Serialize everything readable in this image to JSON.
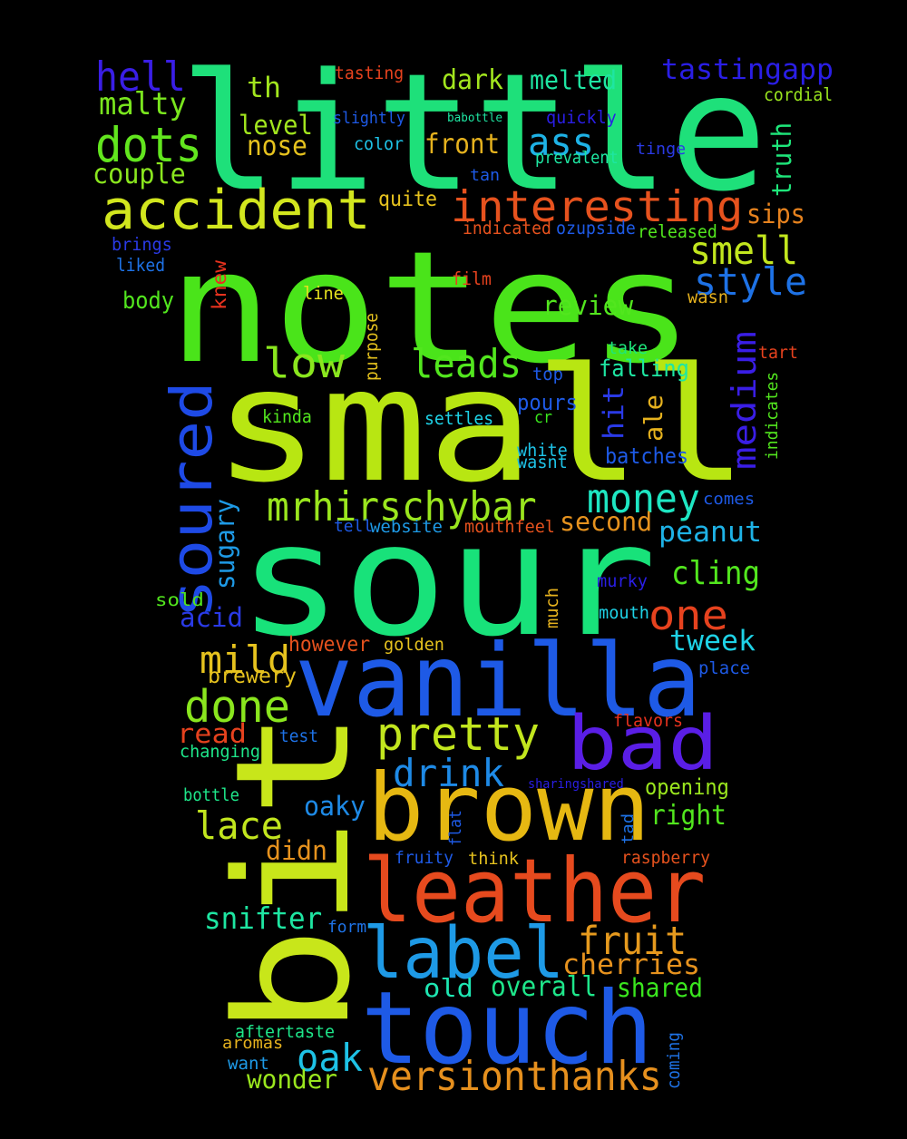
{
  "words": [
    {
      "text": "little",
      "color": "#1ee07a",
      "vertical": false
    },
    {
      "text": "notes",
      "color": "#4ae41a",
      "vertical": false
    },
    {
      "text": "small",
      "color": "#b8e612",
      "vertical": false
    },
    {
      "text": "sour",
      "color": "#18e27a",
      "vertical": false
    },
    {
      "text": "bit",
      "color": "#c8e61a",
      "vertical": true
    },
    {
      "text": "vanilla",
      "color": "#1e5ae6",
      "vertical": false
    },
    {
      "text": "brown",
      "color": "#e6b812",
      "vertical": false
    },
    {
      "text": "leather",
      "color": "#e64a1e",
      "vertical": false
    },
    {
      "text": "touch",
      "color": "#1e5ae6",
      "vertical": false
    },
    {
      "text": "bad",
      "color": "#5a1ee6",
      "vertical": false
    },
    {
      "text": "label",
      "color": "#1e9ae6",
      "vertical": false
    },
    {
      "text": "accident",
      "color": "#d2e61e",
      "vertical": false
    },
    {
      "text": "soured",
      "color": "#1e4ae6",
      "vertical": true
    },
    {
      "text": "interesting",
      "color": "#e6521e",
      "vertical": false
    },
    {
      "text": "mrhirschybar",
      "color": "#9ae61e",
      "vertical": false
    },
    {
      "text": "pretty",
      "color": "#c2e61e",
      "vertical": false
    },
    {
      "text": "versionthanks",
      "color": "#e6901e",
      "vertical": false
    },
    {
      "text": "dots",
      "color": "#62e61e",
      "vertical": false
    },
    {
      "text": "hell",
      "color": "#3a1ee6",
      "vertical": false
    },
    {
      "text": "low",
      "color": "#8ae61e",
      "vertical": false
    },
    {
      "text": "leads",
      "color": "#52e61e",
      "vertical": false
    },
    {
      "text": "done",
      "color": "#8ae61e",
      "vertical": false
    },
    {
      "text": "money",
      "color": "#1ee6c2",
      "vertical": false
    },
    {
      "text": "drink",
      "color": "#1e8ae6",
      "vertical": false
    },
    {
      "text": "medium",
      "color": "#3a1ee6",
      "vertical": true
    },
    {
      "text": "smell",
      "color": "#c2e61e",
      "vertical": false
    },
    {
      "text": "style",
      "color": "#1e72e6",
      "vertical": false
    },
    {
      "text": "cling",
      "color": "#52e61e",
      "vertical": false
    },
    {
      "text": "one",
      "color": "#e6421e",
      "vertical": false
    },
    {
      "text": "mild",
      "color": "#e6c21e",
      "vertical": false
    },
    {
      "text": "fruit",
      "color": "#e69a1e",
      "vertical": false
    },
    {
      "text": "lace",
      "color": "#c2e61e",
      "vertical": false
    },
    {
      "text": "oak",
      "color": "#1ec2e6",
      "vertical": false
    },
    {
      "text": "ass",
      "color": "#1eb2e6",
      "vertical": false
    },
    {
      "text": "tastingapp",
      "color": "#2a1ee6",
      "vertical": false
    },
    {
      "text": "malty",
      "color": "#7ae61e",
      "vertical": false
    },
    {
      "text": "couple",
      "color": "#8ae61e",
      "vertical": false
    },
    {
      "text": "th",
      "color": "#a2e61e",
      "vertical": false
    },
    {
      "text": "dark",
      "color": "#a2e61e",
      "vertical": false
    },
    {
      "text": "melted",
      "color": "#1ee6a2",
      "vertical": false
    },
    {
      "text": "level",
      "color": "#a2e61e",
      "vertical": false
    },
    {
      "text": "nose",
      "color": "#e6c21e",
      "vertical": false
    },
    {
      "text": "front",
      "color": "#e6b21e",
      "vertical": false
    },
    {
      "text": "truth",
      "color": "#1ee67a",
      "vertical": true
    },
    {
      "text": "sips",
      "color": "#e6821e",
      "vertical": false
    },
    {
      "text": "review",
      "color": "#52e61e",
      "vertical": false
    },
    {
      "text": "peanut",
      "color": "#1eb2e6",
      "vertical": false
    },
    {
      "text": "second",
      "color": "#e6921e",
      "vertical": false
    },
    {
      "text": "tweek",
      "color": "#1ed2e6",
      "vertical": false
    },
    {
      "text": "cherries",
      "color": "#e6921e",
      "vertical": false
    },
    {
      "text": "overall",
      "color": "#1ee68a",
      "vertical": false
    },
    {
      "text": "shared",
      "color": "#3ae61e",
      "vertical": false
    },
    {
      "text": "old",
      "color": "#1ee6b2",
      "vertical": false
    },
    {
      "text": "snifter",
      "color": "#1ee6a2",
      "vertical": false
    },
    {
      "text": "didn",
      "color": "#e6921e",
      "vertical": false
    },
    {
      "text": "wonder",
      "color": "#9ae61e",
      "vertical": false
    },
    {
      "text": "read",
      "color": "#e6421e",
      "vertical": false
    },
    {
      "text": "sugary",
      "color": "#1e9ae6",
      "vertical": true
    },
    {
      "text": "acid",
      "color": "#2a3ae6",
      "vertical": false
    },
    {
      "text": "hit",
      "color": "#2a3ae6",
      "vertical": true
    },
    {
      "text": "ale",
      "color": "#e6b21e",
      "vertical": true
    },
    {
      "text": "falling",
      "color": "#1ee6a2",
      "vertical": false
    },
    {
      "text": "right",
      "color": "#52e61e",
      "vertical": false
    },
    {
      "text": "oaky",
      "color": "#1e8ae6",
      "vertical": false
    },
    {
      "text": "batches",
      "color": "#1e5ae6",
      "vertical": false
    },
    {
      "text": "brewery",
      "color": "#e6c21e",
      "vertical": false
    },
    {
      "text": "however",
      "color": "#e6521e",
      "vertical": false
    },
    {
      "text": "opening",
      "color": "#9ae61e",
      "vertical": false
    },
    {
      "text": "pours",
      "color": "#1e5ae6",
      "vertical": false
    },
    {
      "text": "body",
      "color": "#52e61e",
      "vertical": false
    },
    {
      "text": "knew",
      "color": "#e6321e",
      "vertical": true
    },
    {
      "text": "tasting",
      "color": "#e6421e",
      "vertical": false
    },
    {
      "text": "babottle",
      "color": "#1ee6a2",
      "vertical": false
    },
    {
      "text": "quickly",
      "color": "#2a1ee6",
      "vertical": false
    },
    {
      "text": "cordial",
      "color": "#9ae61e",
      "vertical": false
    },
    {
      "text": "slightly",
      "color": "#1e5ae6",
      "vertical": false
    },
    {
      "text": "color",
      "color": "#1ec2e6",
      "vertical": false
    },
    {
      "text": "prevalent",
      "color": "#1ee6a2",
      "vertical": false
    },
    {
      "text": "tinge",
      "color": "#2a3ae6",
      "vertical": false
    },
    {
      "text": "tan",
      "color": "#1e5ae6",
      "vertical": false
    },
    {
      "text": "quite",
      "color": "#e6c21e",
      "vertical": false
    },
    {
      "text": "brings",
      "color": "#2a3ae6",
      "vertical": false
    },
    {
      "text": "indicated",
      "color": "#e6521e",
      "vertical": false
    },
    {
      "text": "ozupside",
      "color": "#1e5ae6",
      "vertical": false
    },
    {
      "text": "released",
      "color": "#52e61e",
      "vertical": false
    },
    {
      "text": "liked",
      "color": "#1e72e6",
      "vertical": false
    },
    {
      "text": "film",
      "color": "#e6421e",
      "vertical": false
    },
    {
      "text": "line",
      "color": "#e6e21e",
      "vertical": false
    },
    {
      "text": "wasn",
      "color": "#e6b21e",
      "vertical": false
    },
    {
      "text": "purpose",
      "color": "#e6c21e",
      "vertical": true
    },
    {
      "text": "take",
      "color": "#1ee67a",
      "vertical": false
    },
    {
      "text": "tart",
      "color": "#e6421e",
      "vertical": false
    },
    {
      "text": "top",
      "color": "#1e5ae6",
      "vertical": false
    },
    {
      "text": "indicates",
      "color": "#52e61e",
      "vertical": true
    },
    {
      "text": "kinda",
      "color": "#52e61e",
      "vertical": false
    },
    {
      "text": "settles",
      "color": "#1ed2e6",
      "vertical": false
    },
    {
      "text": "cr",
      "color": "#3ae61e",
      "vertical": false
    },
    {
      "text": "white",
      "color": "#1ec2e6",
      "vertical": false
    },
    {
      "text": "wasnt",
      "color": "#1ec2e6",
      "vertical": false
    },
    {
      "text": "comes",
      "color": "#1e5ae6",
      "vertical": false
    },
    {
      "text": "tell",
      "color": "#1e5ae6",
      "vertical": false
    },
    {
      "text": "website",
      "color": "#1e9ae6",
      "vertical": false
    },
    {
      "text": "mouthfeel",
      "color": "#e6521e",
      "vertical": false
    },
    {
      "text": "murky",
      "color": "#2a1ee6",
      "vertical": false
    },
    {
      "text": "sold",
      "color": "#52e61e",
      "vertical": false
    },
    {
      "text": "much",
      "color": "#e6b21e",
      "vertical": true
    },
    {
      "text": "mouth",
      "color": "#1ed2e6",
      "vertical": false
    },
    {
      "text": "golden",
      "color": "#e6c21e",
      "vertical": false
    },
    {
      "text": "place",
      "color": "#1e5ae6",
      "vertical": false
    },
    {
      "text": "flavors",
      "color": "#e6321e",
      "vertical": false
    },
    {
      "text": "test",
      "color": "#1e72e6",
      "vertical": false
    },
    {
      "text": "changing",
      "color": "#1ee68a",
      "vertical": false
    },
    {
      "text": "sharingshared",
      "color": "#2a1ee6",
      "vertical": false
    },
    {
      "text": "bottle",
      "color": "#1ee68a",
      "vertical": false
    },
    {
      "text": "flat",
      "color": "#1e5ae6",
      "vertical": true
    },
    {
      "text": "tad",
      "color": "#1e72e6",
      "vertical": true
    },
    {
      "text": "fruity",
      "color": "#1e5ae6",
      "vertical": false
    },
    {
      "text": "think",
      "color": "#e6c21e",
      "vertical": false
    },
    {
      "text": "raspberry",
      "color": "#e6521e",
      "vertical": false
    },
    {
      "text": "form",
      "color": "#1e72e6",
      "vertical": false
    },
    {
      "text": "aftertaste",
      "color": "#1ee68a",
      "vertical": false
    },
    {
      "text": "aromas",
      "color": "#e6b21e",
      "vertical": false
    },
    {
      "text": "want",
      "color": "#1e9ae6",
      "vertical": false
    },
    {
      "text": "coming",
      "color": "#1e72e6",
      "vertical": true
    }
  ]
}
